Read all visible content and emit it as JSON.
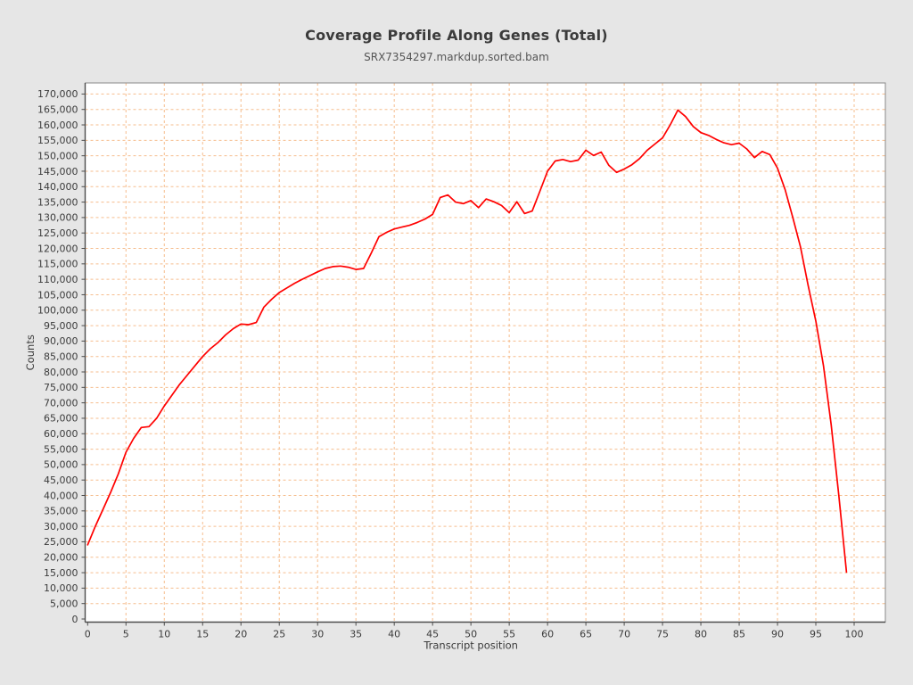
{
  "header": {
    "title": "Coverage Profile Along Genes (Total)",
    "subtitle": "SRX7354297.markdup.sorted.bam"
  },
  "chart_data": {
    "type": "line",
    "title": "Coverage Profile Along Genes (Total)",
    "subtitle": "SRX7354297.markdup.sorted.bam",
    "xlabel": "Transcript position",
    "ylabel": "Counts",
    "xlim": [
      0,
      100
    ],
    "ylim": [
      0,
      170000
    ],
    "x_tick_step": 5,
    "y_tick_step": 5000,
    "grid": true,
    "legend": "none",
    "line_color": "#ff0000",
    "grid_color": "#f6bd8d",
    "plot_bg": "#ffffff",
    "page_bg": "#e6e6e6",
    "frame_color": "#8a8a8a",
    "axis_color": "#4d4d4d",
    "text_color": "#3b3b3b",
    "subtitle_color": "#555555",
    "x": [
      0,
      1,
      2,
      3,
      4,
      5,
      6,
      7,
      8,
      9,
      10,
      11,
      12,
      13,
      14,
      15,
      16,
      17,
      18,
      19,
      20,
      21,
      22,
      23,
      24,
      25,
      26,
      27,
      28,
      29,
      30,
      31,
      32,
      33,
      34,
      35,
      36,
      37,
      38,
      39,
      40,
      41,
      42,
      43,
      44,
      45,
      46,
      47,
      48,
      49,
      50,
      51,
      52,
      53,
      54,
      55,
      56,
      57,
      58,
      59,
      60,
      61,
      62,
      63,
      64,
      65,
      66,
      67,
      68,
      69,
      70,
      71,
      72,
      73,
      74,
      75,
      76,
      77,
      78,
      79,
      80,
      81,
      82,
      83,
      84,
      85,
      86,
      87,
      88,
      89,
      90,
      91,
      92,
      93,
      94,
      95,
      96,
      97,
      98,
      99
    ],
    "values": [
      24000,
      30000,
      35500,
      41000,
      47000,
      54000,
      58500,
      62000,
      62300,
      65000,
      69000,
      72500,
      76000,
      79000,
      82000,
      85000,
      87500,
      89500,
      92000,
      94000,
      95500,
      95300,
      96000,
      101000,
      103500,
      105700,
      107200,
      108700,
      110000,
      111200,
      112400,
      113500,
      114100,
      114300,
      113900,
      113200,
      113500,
      118500,
      123800,
      125200,
      126300,
      126900,
      127500,
      128400,
      129500,
      131000,
      136500,
      137300,
      135000,
      134500,
      135500,
      133200,
      136000,
      135100,
      133900,
      131600,
      135100,
      131300,
      132100,
      138500,
      145000,
      148300,
      148800,
      148100,
      148600,
      151800,
      150100,
      151200,
      146900,
      144600,
      145700,
      147100,
      149100,
      151800,
      153800,
      155800,
      160000,
      164800,
      162700,
      159500,
      157500,
      156600,
      155300,
      154200,
      153600,
      154100,
      152200,
      149400,
      151400,
      150400,
      146000,
      139000,
      130000,
      120500,
      108000,
      96500,
      82000,
      63000,
      40000,
      15200
    ]
  }
}
